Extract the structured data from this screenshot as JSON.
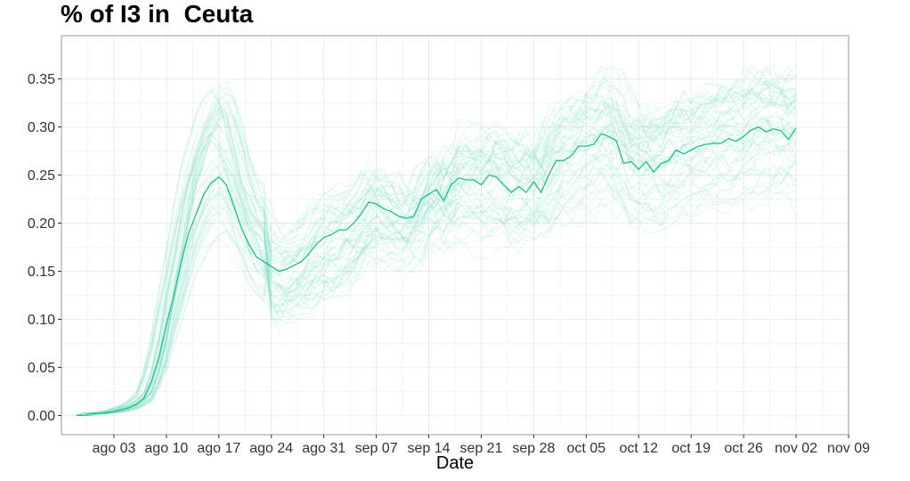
{
  "chart_data": {
    "type": "line",
    "title": "% of I3 in  Ceuta",
    "xlabel": "Date",
    "ylabel": "",
    "x_start": "2020-07-29",
    "x_end": "2020-11-05",
    "xlim": [
      "2020-07-27",
      "2020-11-09"
    ],
    "ylim": [
      -0.02,
      0.395
    ],
    "x_tick_dates": [
      "2020-08-03",
      "2020-08-10",
      "2020-08-17",
      "2020-08-24",
      "2020-08-31",
      "2020-09-07",
      "2020-09-14",
      "2020-09-21",
      "2020-09-28",
      "2020-10-05",
      "2020-10-12",
      "2020-10-19",
      "2020-10-26",
      "2020-11-02",
      "2020-11-09"
    ],
    "x_tick_labels": [
      "ago 03",
      "ago 10",
      "ago 17",
      "ago 24",
      "ago 31",
      "sep 07",
      "sep 14",
      "sep 21",
      "sep 28",
      "oct 05",
      "oct 12",
      "oct 19",
      "oct 26",
      "nov 02",
      "nov 09"
    ],
    "y_ticks": [
      0.0,
      0.05,
      0.1,
      0.15,
      0.2,
      0.25,
      0.3,
      0.35
    ],
    "y_tick_labels": [
      "0.00",
      "0.05",
      "0.10",
      "0.15",
      "0.20",
      "0.25",
      "0.30",
      "0.35"
    ],
    "grid": true,
    "legend": "none",
    "colors": {
      "main": "#1DBE8C",
      "ensemble": "#7EDFC4",
      "grid": "#EBEBEB",
      "panel_border": "#999999"
    },
    "series_main": {
      "values": [
        0.0,
        0.0,
        0.002,
        0.002,
        0.003,
        0.004,
        0.006,
        0.008,
        0.012,
        0.018,
        0.035,
        0.06,
        0.095,
        0.125,
        0.16,
        0.19,
        0.21,
        0.23,
        0.242,
        0.248,
        0.24,
        0.218,
        0.195,
        0.178,
        0.165,
        0.16,
        0.155,
        0.15,
        0.152,
        0.156,
        0.16,
        0.168,
        0.178,
        0.185,
        0.188,
        0.193,
        0.193,
        0.2,
        0.21,
        0.222,
        0.22,
        0.215,
        0.212,
        0.207,
        0.205,
        0.207,
        0.225,
        0.23,
        0.235,
        0.223,
        0.24,
        0.247,
        0.245,
        0.245,
        0.24,
        0.25,
        0.248,
        0.24,
        0.232,
        0.238,
        0.232,
        0.243,
        0.232,
        0.25,
        0.265,
        0.265,
        0.27,
        0.28,
        0.28,
        0.282,
        0.293,
        0.29,
        0.286,
        0.262,
        0.264,
        0.256,
        0.264,
        0.253,
        0.262,
        0.265,
        0.276,
        0.272,
        0.276,
        0.28,
        0.282,
        0.283,
        0.283,
        0.288,
        0.285,
        0.29,
        0.297,
        0.3,
        0.295,
        0.298,
        0.296,
        0.287,
        0.299
      ]
    },
    "ensemble_count": 60,
    "ensemble_opacity": 0.22
  }
}
